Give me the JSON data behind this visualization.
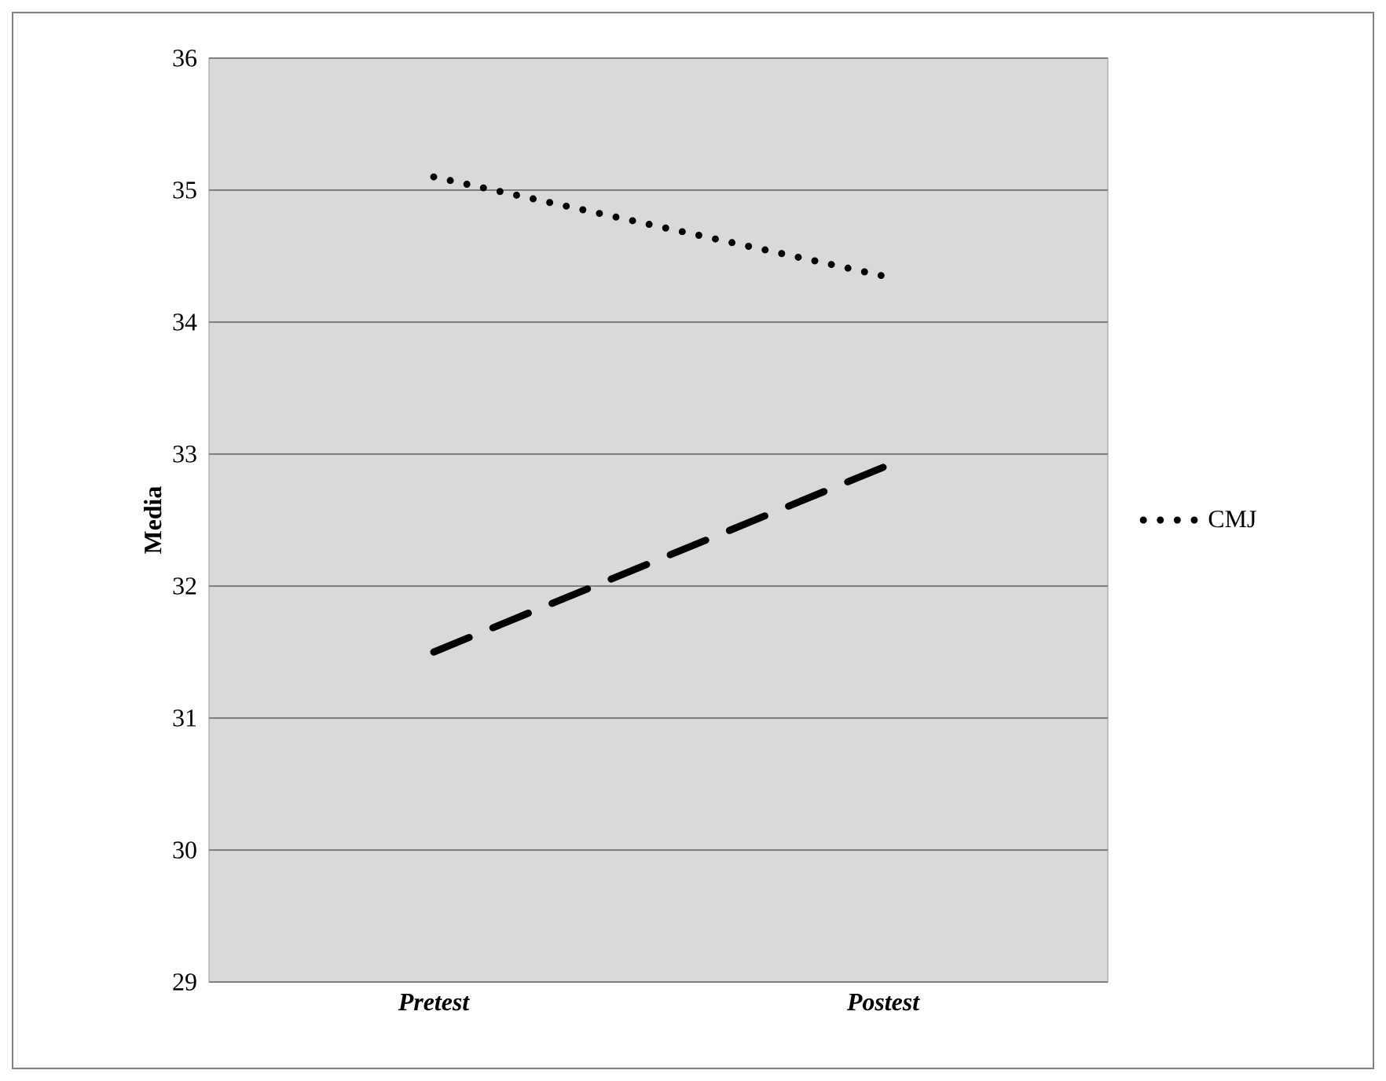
{
  "chart_data": {
    "type": "line",
    "ylabel": "Media",
    "categories": [
      "Pretest",
      "Postest"
    ],
    "series": [
      {
        "name": "CMJ",
        "color": "#000000",
        "values": [
          35.1,
          34.35
        ],
        "line_style": "dotted"
      },
      {
        "color": "#000000",
        "values": [
          31.5,
          32.9
        ],
        "line_style": "dashed"
      }
    ],
    "ylim": [
      29,
      36
    ],
    "yticks": [
      29,
      30,
      31,
      32,
      33,
      34,
      35,
      36
    ],
    "grid": "y",
    "legend": "right",
    "marker": "none"
  }
}
